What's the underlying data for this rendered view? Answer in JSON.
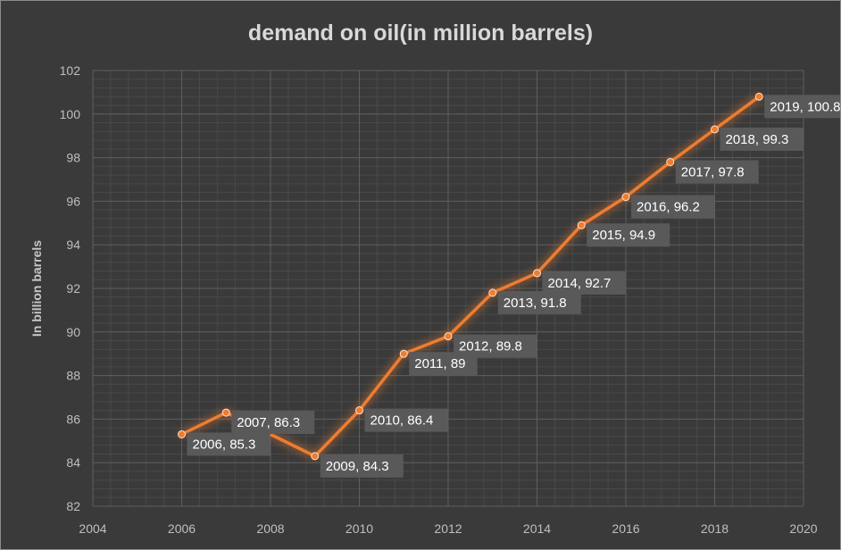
{
  "chart_data": {
    "type": "scatter",
    "title": "demand on oil(in million barrels)",
    "xlabel": "",
    "ylabel": "In billion barrels",
    "xlim": [
      2004,
      2020
    ],
    "ylim": [
      82,
      102
    ],
    "xticks": [
      2004,
      2006,
      2008,
      2010,
      2012,
      2014,
      2016,
      2018,
      2020
    ],
    "yticks": [
      82,
      84,
      86,
      88,
      90,
      92,
      94,
      96,
      98,
      100,
      102
    ],
    "grid": true,
    "legend": "none",
    "line_color": "#ed7d31",
    "series": [
      {
        "x": [
          2006,
          2007,
          2009,
          2010,
          2011,
          2012,
          2013,
          2014,
          2015,
          2016,
          2017,
          2018,
          2019
        ],
        "y": [
          85.3,
          86.3,
          84.3,
          86.4,
          89,
          89.8,
          91.8,
          92.7,
          94.9,
          96.2,
          97.8,
          99.3,
          100.8
        ],
        "labels": [
          "2006, 85.3",
          "2007, 86.3",
          "2009, 84.3",
          "2010, 86.4",
          "2011, 89",
          "2012, 89.8",
          "2013, 91.8",
          "2014, 92.7",
          "2015, 94.9",
          "2016, 96.2",
          "2017, 97.8",
          "2018, 99.3",
          "2019, 100.8"
        ]
      }
    ]
  }
}
